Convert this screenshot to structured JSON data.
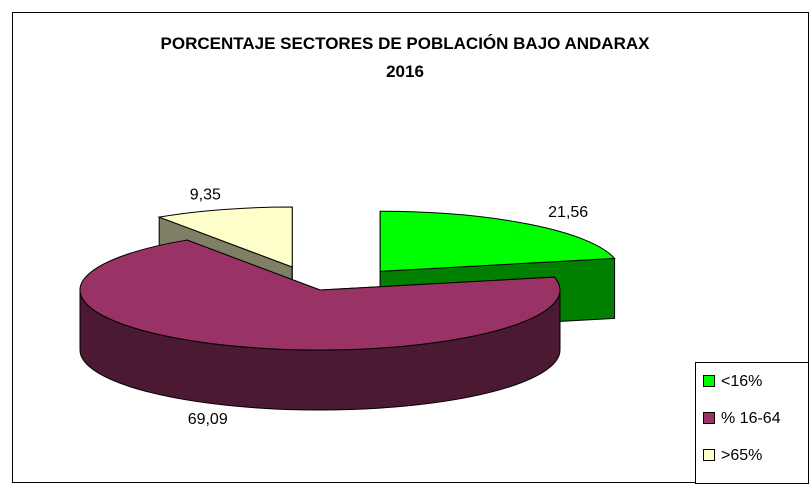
{
  "chart_data": {
    "type": "pie3d",
    "title": "PORCENTAJE SECTORES DE POBLACIÓN BAJO ANDARAX 2016",
    "categories": [
      "<16%",
      "% 16-64",
      ">65%"
    ],
    "values": [
      21.56,
      69.09,
      9.35
    ],
    "value_labels": [
      "21,56",
      "69,09",
      "9,35"
    ],
    "colors": [
      "#00ff00",
      "#993366",
      "#ffffcc"
    ],
    "legend": "bottom-right"
  }
}
